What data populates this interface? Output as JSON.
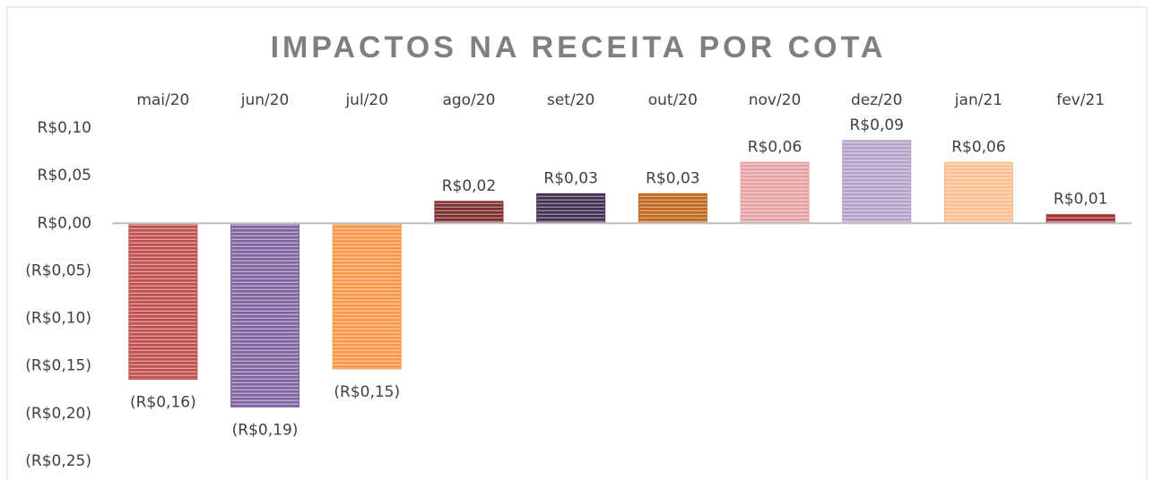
{
  "chart_data": {
    "type": "bar",
    "title": "IMPACTOS NA RECEITA POR COTA",
    "categories": [
      "mai/20",
      "jun/20",
      "jul/20",
      "ago/20",
      "set/20",
      "out/20",
      "nov/20",
      "dez/20",
      "jan/21",
      "fev/21"
    ],
    "values": [
      -0.164,
      -0.193,
      -0.153,
      0.023,
      0.031,
      0.031,
      0.064,
      0.087,
      0.064,
      0.009
    ],
    "value_labels": [
      "(R$0,16)",
      "(R$0,19)",
      "(R$0,15)",
      "R$0,02",
      "R$0,03",
      "R$0,03",
      "R$0,06",
      "R$0,09",
      "R$0,06",
      "R$0,01"
    ],
    "colors": [
      "#c0504d",
      "#8064a2",
      "#f79646",
      "#7b2c2c",
      "#3f3151",
      "#c0651a",
      "#e6a0a0",
      "#b3a2c7",
      "#fac090",
      "#a03030"
    ],
    "ylim": [
      -0.25,
      0.1
    ],
    "yticks": [
      {
        "value": 0.1,
        "label": "R$0,10"
      },
      {
        "value": 0.05,
        "label": "R$0,05"
      },
      {
        "value": 0,
        "label": "R$0,00"
      },
      {
        "value": -0.05,
        "label": "(R$0,05)"
      },
      {
        "value": -0.1,
        "label": "(R$0,10)"
      },
      {
        "value": -0.15,
        "label": "(R$0,15)"
      },
      {
        "value": -0.2,
        "label": "(R$0,20)"
      },
      {
        "value": -0.25,
        "label": "(R$0,25)"
      }
    ]
  }
}
